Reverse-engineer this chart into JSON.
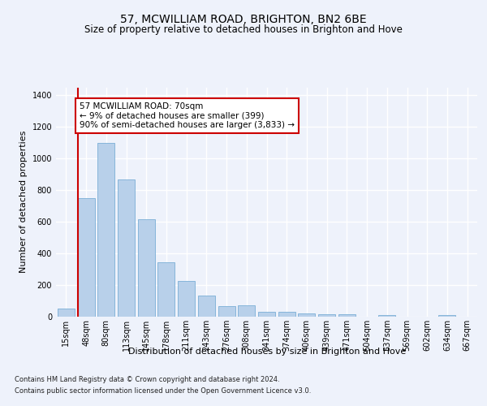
{
  "title": "57, MCWILLIAM ROAD, BRIGHTON, BN2 6BE",
  "subtitle": "Size of property relative to detached houses in Brighton and Hove",
  "xlabel": "Distribution of detached houses by size in Brighton and Hove",
  "ylabel": "Number of detached properties",
  "footer1": "Contains HM Land Registry data © Crown copyright and database right 2024.",
  "footer2": "Contains public sector information licensed under the Open Government Licence v3.0.",
  "categories": [
    "15sqm",
    "48sqm",
    "80sqm",
    "113sqm",
    "145sqm",
    "178sqm",
    "211sqm",
    "243sqm",
    "276sqm",
    "308sqm",
    "341sqm",
    "374sqm",
    "406sqm",
    "439sqm",
    "471sqm",
    "504sqm",
    "537sqm",
    "569sqm",
    "602sqm",
    "634sqm",
    "667sqm"
  ],
  "values": [
    50,
    750,
    1100,
    865,
    615,
    345,
    225,
    135,
    65,
    70,
    30,
    30,
    20,
    15,
    15,
    0,
    10,
    0,
    0,
    10,
    0
  ],
  "bar_color": "#b8d0ea",
  "bar_edge_color": "#7aaed6",
  "vline_color": "#cc0000",
  "vline_x_index": 1,
  "annotation_text": "57 MCWILLIAM ROAD: 70sqm\n← 9% of detached houses are smaller (399)\n90% of semi-detached houses are larger (3,833) →",
  "annotation_box_color": "#ffffff",
  "annotation_box_edge": "#cc0000",
  "ylim": [
    0,
    1450
  ],
  "yticks": [
    0,
    200,
    400,
    600,
    800,
    1000,
    1200,
    1400
  ],
  "background_color": "#eef2fb",
  "plot_bg_color": "#eef2fb",
  "grid_color": "#ffffff",
  "title_fontsize": 10,
  "subtitle_fontsize": 8.5,
  "xlabel_fontsize": 8,
  "ylabel_fontsize": 8,
  "tick_fontsize": 7,
  "footer_fontsize": 6,
  "annotation_fontsize": 7.5
}
